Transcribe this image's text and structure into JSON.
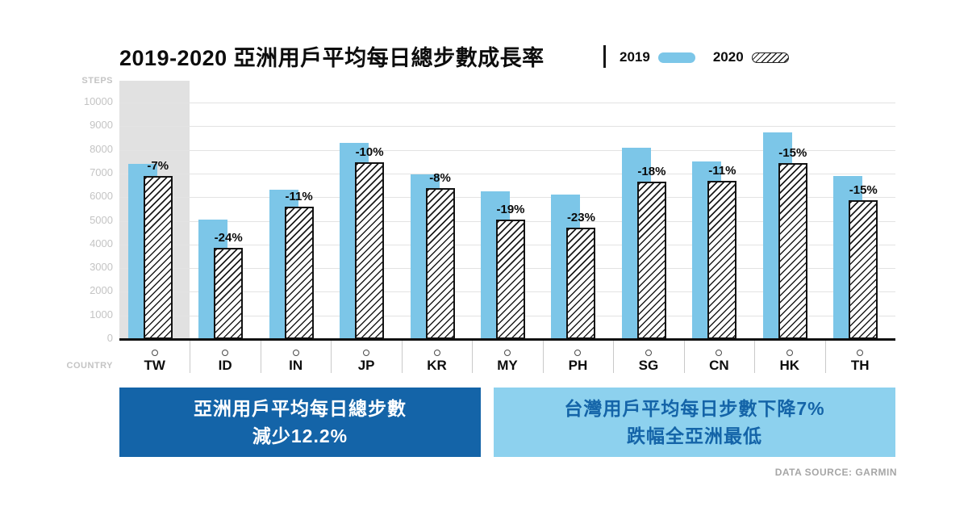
{
  "header": {
    "title": "2019-2020 亞洲用戶平均每日總步數成長率",
    "legend": [
      {
        "label": "2019",
        "style": "solid-blue"
      },
      {
        "label": "2020",
        "style": "hatched"
      }
    ]
  },
  "chart_data": {
    "type": "bar",
    "title": "2019-2020 亞洲用戶平均每日總步數成長率",
    "ylabel": "STEPS",
    "xlabel": "COUNTRY",
    "ylim": [
      0,
      10000
    ],
    "ytick_interval": 1000,
    "grid": true,
    "legend_position": "top",
    "highlighted_category": "TW",
    "categories": [
      "TW",
      "ID",
      "IN",
      "JP",
      "KR",
      "MY",
      "PH",
      "SG",
      "CN",
      "HK",
      "TH"
    ],
    "series": [
      {
        "name": "2019",
        "values": [
          7400,
          5050,
          6300,
          8300,
          6950,
          6250,
          6100,
          8100,
          7500,
          8750,
          6900
        ]
      },
      {
        "name": "2020",
        "values": [
          6880,
          3840,
          5610,
          7470,
          6390,
          5060,
          4700,
          6640,
          6680,
          7440,
          5870
        ]
      }
    ],
    "change_labels": [
      "-7%",
      "-24%",
      "-11%",
      "-10%",
      "-8%",
      "-19%",
      "-23%",
      "-18%",
      "-11%",
      "-15%",
      "-15%"
    ]
  },
  "callouts": {
    "left": {
      "line1": "亞洲用戶平均每日總步數",
      "line2": "減少12.2%"
    },
    "right": {
      "line1": "台灣用戶平均每日步數下降7%",
      "line2": "跌幅全亞洲最低"
    }
  },
  "footer": {
    "source": "DATA SOURCE: GARMIN"
  },
  "colors": {
    "bar_2019": "#7cc6e8",
    "bar_2020_hatch": "#1c1c1c",
    "dark_box": "#1464a8",
    "light_box": "#8dd1ee",
    "highlight_band": "#e1e1e1",
    "grid_line": "#e3e3e3",
    "axis_text": "#c4c4c4"
  }
}
